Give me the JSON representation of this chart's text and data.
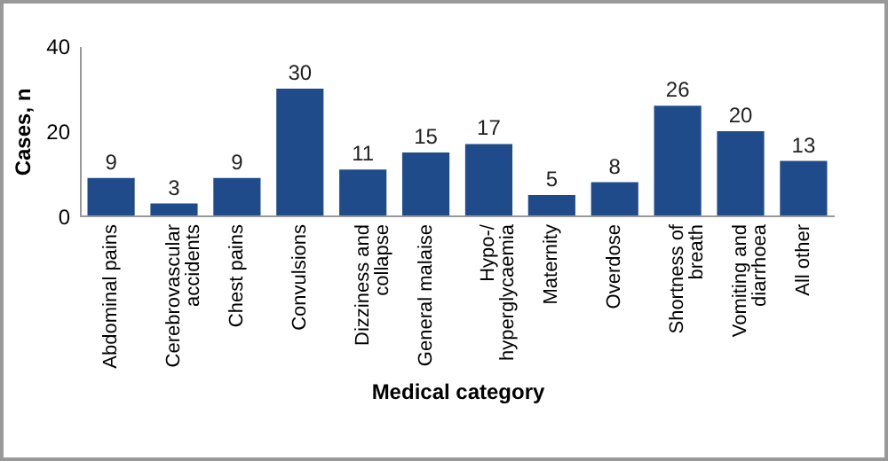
{
  "chart_data": {
    "type": "bar",
    "xlabel": "Medical category",
    "ylabel": "Cases, n",
    "categories": [
      "Abdominal pains",
      "Cerebrovascular accidents",
      "Chest pains",
      "Convulsions",
      "Dizziness and collapse",
      "General malaise",
      "Hypo-/ hyperglycaemia",
      "Maternity",
      "Overdose",
      "Shortness of breath",
      "Vomiting and diarrhoea",
      "All other"
    ],
    "values": [
      9,
      3,
      9,
      30,
      11,
      15,
      17,
      5,
      8,
      26,
      20,
      13
    ],
    "color": "#1f4b8b",
    "ylim": [
      0,
      40
    ],
    "yticks": [
      0,
      20,
      40
    ],
    "grid": false,
    "data_labels": true
  }
}
